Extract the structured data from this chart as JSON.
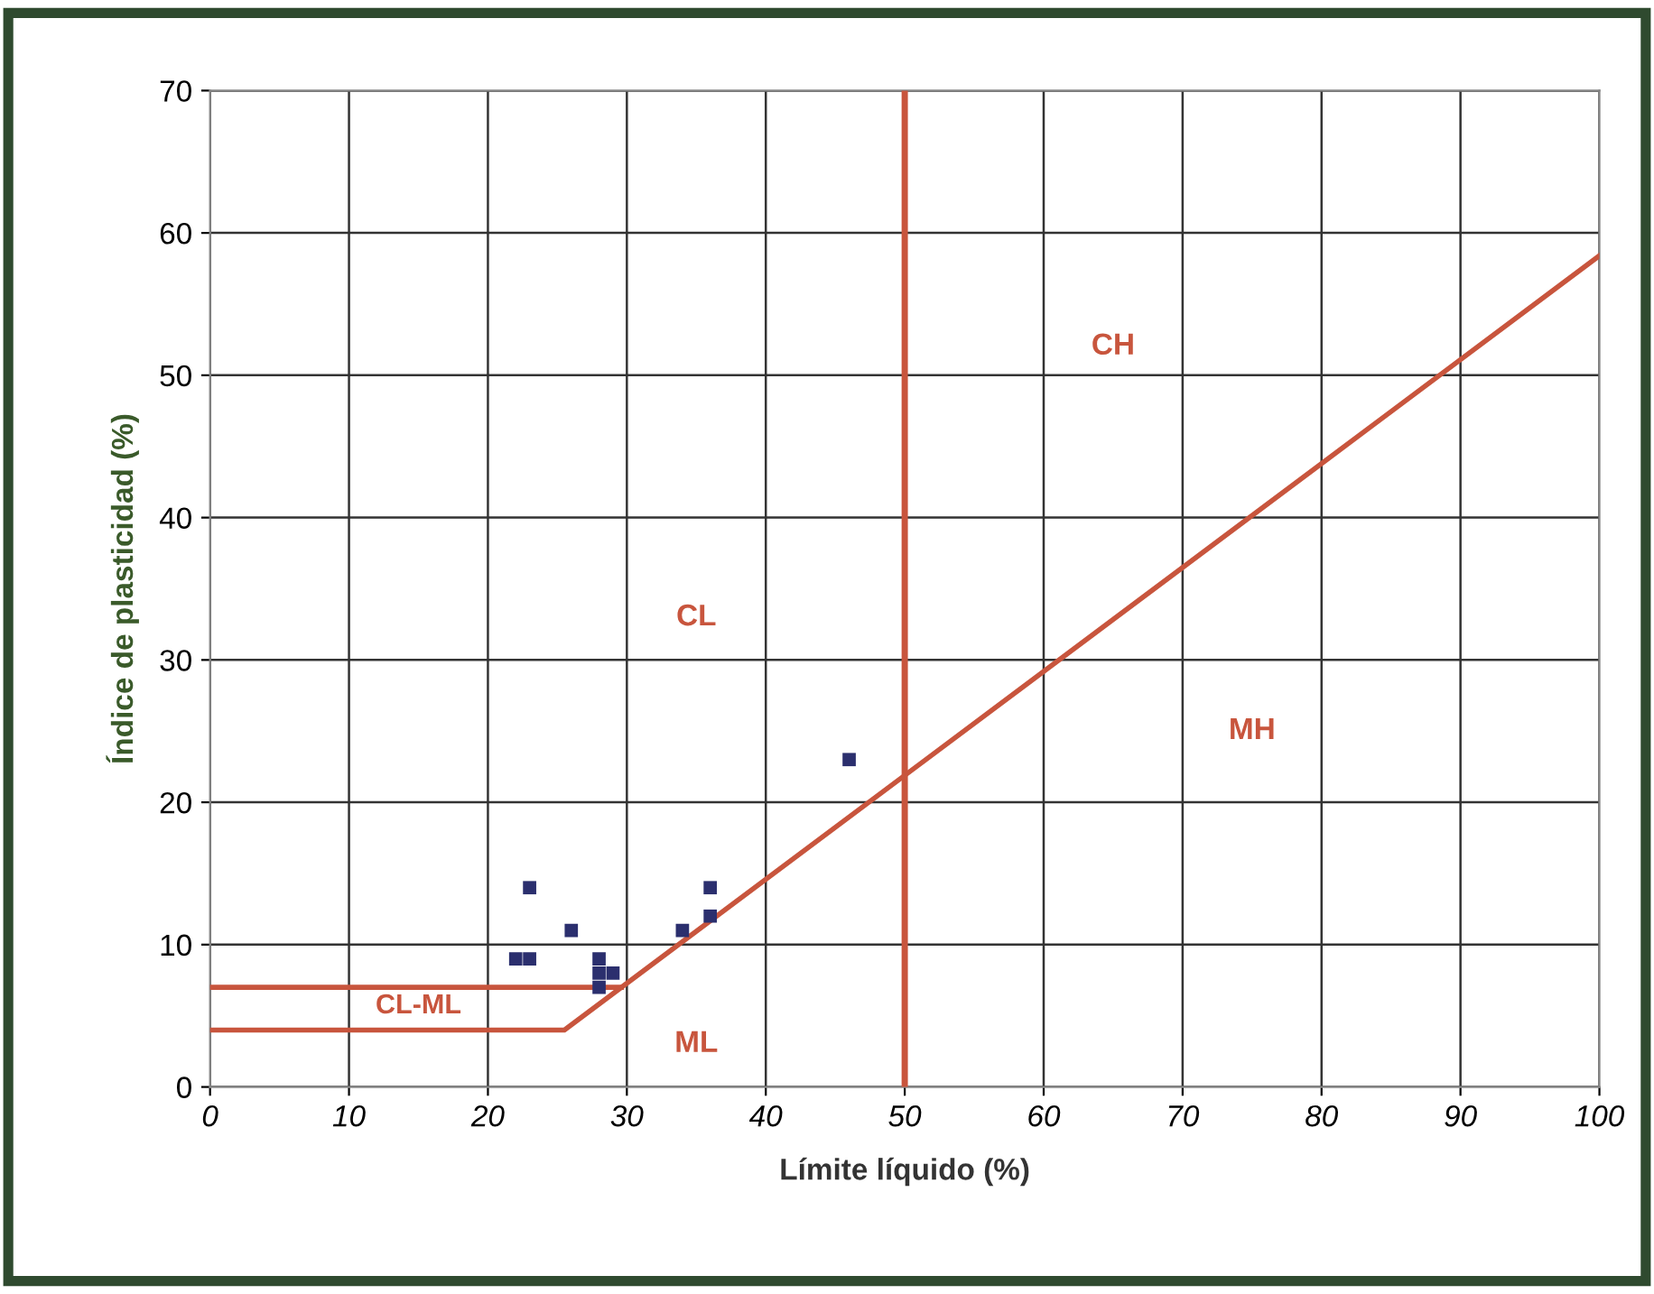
{
  "chart_data": {
    "type": "scatter",
    "xlabel": "Límite líquido (%)",
    "ylabel": "Índice de plasticidad (%)",
    "xlim": [
      0,
      100
    ],
    "ylim": [
      0,
      70
    ],
    "xticks": [
      0,
      10,
      20,
      30,
      40,
      50,
      60,
      70,
      80,
      90,
      100
    ],
    "yticks": [
      0,
      10,
      20,
      30,
      40,
      50,
      60,
      70
    ],
    "grid": true,
    "marker": "square",
    "series": [
      {
        "color": "#2b2f6e",
        "x": [
          22,
          23,
          23,
          26,
          28,
          28,
          28,
          29,
          34,
          36,
          36,
          46
        ],
        "values": [
          9,
          9,
          14,
          11,
          9,
          8,
          7,
          8,
          11,
          12,
          14,
          23
        ]
      },
      {
        "type": "line",
        "color": "#c8553d",
        "marker": "none",
        "line_style": "solid",
        "x": [
          0,
          25.5,
          100
        ],
        "values": [
          4,
          4,
          58.4
        ]
      },
      {
        "type": "line",
        "color": "#c8553d",
        "marker": "none",
        "line_style": "solid",
        "x": [
          0,
          29.6
        ],
        "values": [
          7,
          7
        ]
      }
    ],
    "ref_lines": [
      {
        "axis": "x",
        "value": 50,
        "color": "#c8553d",
        "line_style": "solid"
      }
    ],
    "annotations": [
      "CH",
      "CL",
      "MH",
      "ML",
      "CL-ML"
    ]
  }
}
